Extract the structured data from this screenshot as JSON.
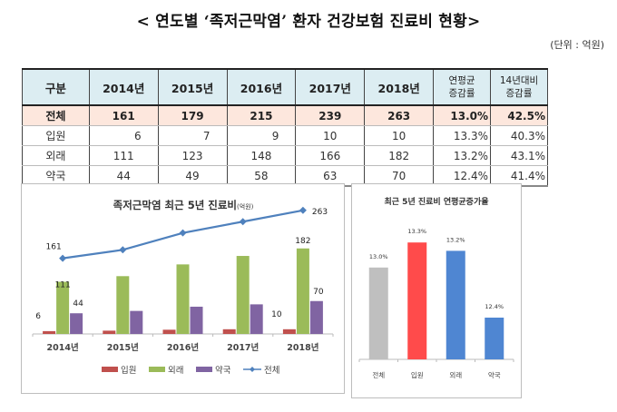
{
  "title": "< 연도별 ‘족저근막염’ 환자 건강보험 진료비 현황>",
  "unit": "(단위 : 억원)",
  "table": {
    "headers": [
      "구분",
      "2014년",
      "2015년",
      "2016년",
      "2017년",
      "2018년",
      "연평균\n증감률",
      "14년대비\n증감률"
    ],
    "header_split": {
      "avg": [
        "연평균",
        "증감률"
      ],
      "vs14": [
        "14년대비",
        "증감률"
      ]
    },
    "rows": [
      {
        "category": "전체",
        "values": [
          "161",
          "179",
          "215",
          "239",
          "263"
        ],
        "avg_rate": "13.0%",
        "vs14_rate": "42.5%"
      },
      {
        "category": "입원",
        "values": [
          "6",
          "7",
          "9",
          "10",
          "10"
        ],
        "avg_rate": "13.3%",
        "vs14_rate": "40.3%"
      },
      {
        "category": "외래",
        "values": [
          "111",
          "123",
          "148",
          "166",
          "182"
        ],
        "avg_rate": "13.2%",
        "vs14_rate": "43.1%"
      },
      {
        "category": "약국",
        "values": [
          "44",
          "49",
          "58",
          "63",
          "70"
        ],
        "avg_rate": "12.4%",
        "vs14_rate": "41.4%"
      }
    ]
  },
  "chart_data": [
    {
      "type": "bar",
      "title": "족저근막염 최근 5년 진료비",
      "title_unit": "(억원)",
      "categories": [
        "2014년",
        "2015년",
        "2016년",
        "2017년",
        "2018년"
      ],
      "series": [
        {
          "name": "입원",
          "kind": "bar",
          "color": "#c0504d",
          "values": [
            6,
            7,
            9,
            10,
            10
          ]
        },
        {
          "name": "외래",
          "kind": "bar",
          "color": "#9bbb59",
          "values": [
            111,
            123,
            148,
            166,
            182
          ]
        },
        {
          "name": "약국",
          "kind": "bar",
          "color": "#8064a2",
          "values": [
            44,
            49,
            58,
            63,
            70
          ]
        },
        {
          "name": "전체",
          "kind": "line",
          "color": "#4f81bd",
          "values": [
            161,
            179,
            215,
            239,
            263
          ]
        }
      ],
      "data_labels": [
        {
          "series": "전체",
          "index": 0,
          "text": "161"
        },
        {
          "series": "전체",
          "index": 4,
          "text": "263"
        },
        {
          "series": "외래",
          "index": 0,
          "text": "111"
        },
        {
          "series": "외래",
          "index": 4,
          "text": "182"
        },
        {
          "series": "약국",
          "index": 0,
          "text": "44"
        },
        {
          "series": "약국",
          "index": 4,
          "text": "70"
        },
        {
          "series": "입원",
          "index": 0,
          "text": "6"
        },
        {
          "series": "입원",
          "index": 4,
          "text": "10"
        }
      ],
      "xlabel": "",
      "ylabel": "",
      "ylim": [
        0,
        280
      ],
      "grid": false,
      "legend": "bottom"
    },
    {
      "type": "bar",
      "title": "최근 5년 진료비 연평균증가율",
      "categories": [
        "전체",
        "입원",
        "외래",
        "약국"
      ],
      "values": [
        13.0,
        13.3,
        13.2,
        12.4
      ],
      "value_labels": [
        "13.0%",
        "13.3%",
        "13.2%",
        "12.4%"
      ],
      "colors": [
        "#bfbfbf",
        "#ff4b4b",
        "#4f86d2",
        "#4f86d2"
      ],
      "ylim": [
        11.9,
        13.4
      ],
      "grid": false,
      "legend": "none"
    }
  ]
}
